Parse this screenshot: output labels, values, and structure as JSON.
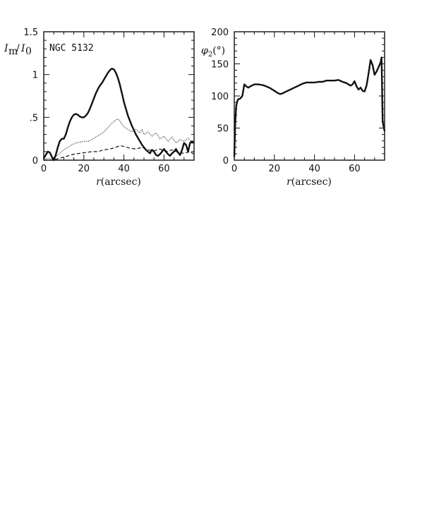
{
  "chart_data": [
    {
      "type": "line",
      "annotation": "NGC 5132",
      "xlabel": "r(arcsec)",
      "ylabel": "I_m/I_0",
      "xlim": [
        0,
        75
      ],
      "ylim": [
        0,
        1.5
      ],
      "x_ticks": [
        0,
        20,
        40,
        60
      ],
      "x_tick_labels": [
        "0",
        "20",
        "40",
        "60"
      ],
      "y_ticks": [
        0,
        0.5,
        1,
        1.5
      ],
      "y_tick_labels": [
        "0",
        ".5",
        "1",
        "1.5"
      ],
      "series": [
        {
          "style": "solid-thick",
          "x": [
            0,
            1,
            2,
            3,
            4,
            5,
            6,
            7,
            8,
            9,
            10,
            11,
            12,
            13,
            14,
            15,
            16,
            17,
            18,
            19,
            20,
            21,
            22,
            23,
            24,
            25,
            26,
            27,
            28,
            29,
            30,
            31,
            32,
            33,
            34,
            35,
            36,
            37,
            38,
            39,
            40,
            41,
            42,
            43,
            44,
            45,
            46,
            47,
            48,
            49,
            50,
            51,
            52,
            53,
            54,
            55,
            56,
            57,
            58,
            59,
            60,
            61,
            62,
            63,
            64,
            65,
            66,
            67,
            68,
            69,
            70,
            71,
            72,
            73,
            74,
            75
          ],
          "values": [
            0.02,
            0.06,
            0.1,
            0.09,
            0.04,
            0.0,
            0.06,
            0.15,
            0.22,
            0.25,
            0.25,
            0.3,
            0.38,
            0.45,
            0.5,
            0.53,
            0.54,
            0.53,
            0.51,
            0.5,
            0.5,
            0.52,
            0.55,
            0.6,
            0.66,
            0.72,
            0.78,
            0.83,
            0.87,
            0.9,
            0.94,
            0.98,
            1.02,
            1.05,
            1.07,
            1.06,
            1.02,
            0.96,
            0.88,
            0.78,
            0.68,
            0.6,
            0.52,
            0.46,
            0.4,
            0.35,
            0.3,
            0.26,
            0.22,
            0.18,
            0.15,
            0.12,
            0.1,
            0.08,
            0.12,
            0.1,
            0.06,
            0.05,
            0.07,
            0.1,
            0.13,
            0.1,
            0.07,
            0.05,
            0.08,
            0.1,
            0.13,
            0.09,
            0.06,
            0.12,
            0.2,
            0.18,
            0.1,
            0.2,
            0.22,
            0.2
          ]
        },
        {
          "style": "dotted",
          "x": [
            0,
            2,
            4,
            6,
            8,
            10,
            12,
            14,
            16,
            18,
            20,
            22,
            24,
            26,
            28,
            30,
            32,
            34,
            36,
            37,
            38,
            39,
            40,
            42,
            44,
            46,
            48,
            49,
            50,
            52,
            54,
            56,
            58,
            60,
            62,
            64,
            66,
            68,
            70,
            72,
            74
          ],
          "values": [
            0.01,
            0.02,
            0.02,
            0.04,
            0.08,
            0.12,
            0.15,
            0.18,
            0.2,
            0.21,
            0.22,
            0.22,
            0.24,
            0.27,
            0.3,
            0.33,
            0.38,
            0.43,
            0.47,
            0.48,
            0.46,
            0.42,
            0.39,
            0.36,
            0.33,
            0.36,
            0.32,
            0.36,
            0.3,
            0.33,
            0.28,
            0.32,
            0.25,
            0.28,
            0.22,
            0.27,
            0.2,
            0.24,
            0.22,
            0.26,
            0.2
          ]
        },
        {
          "style": "dashed",
          "x": [
            0,
            3,
            6,
            9,
            12,
            15,
            18,
            21,
            24,
            27,
            30,
            33,
            36,
            38,
            40,
            43,
            46,
            49,
            52,
            55,
            58,
            61,
            64,
            67,
            70,
            73,
            75
          ],
          "values": [
            0.0,
            0.0,
            0.01,
            0.03,
            0.05,
            0.07,
            0.08,
            0.09,
            0.1,
            0.1,
            0.12,
            0.13,
            0.15,
            0.17,
            0.16,
            0.14,
            0.13,
            0.15,
            0.12,
            0.11,
            0.13,
            0.1,
            0.12,
            0.09,
            0.08,
            0.1,
            0.07
          ]
        }
      ]
    },
    {
      "type": "line",
      "xlabel": "r(arcsec)",
      "ylabel": "φ2(°)",
      "xlim": [
        0,
        75
      ],
      "ylim": [
        0,
        200
      ],
      "x_ticks": [
        0,
        20,
        40,
        60
      ],
      "x_tick_labels": [
        "0",
        "20",
        "40",
        "60"
      ],
      "y_ticks": [
        0,
        50,
        100,
        150,
        200
      ],
      "y_tick_labels": [
        "0",
        "50",
        "100",
        "150",
        "200"
      ],
      "series": [
        {
          "style": "solid-thick",
          "x": [
            0,
            0.5,
            1,
            1.5,
            2,
            3,
            4,
            5,
            6,
            7,
            8,
            10,
            12,
            14,
            16,
            18,
            20,
            22,
            23,
            24,
            26,
            28,
            30,
            32,
            34,
            36,
            38,
            40,
            42,
            44,
            46,
            48,
            50,
            52,
            54,
            56,
            58,
            59,
            60,
            61,
            62,
            63,
            64,
            65,
            66,
            67,
            68,
            69,
            70,
            71,
            72,
            73,
            73.5,
            74,
            75
          ],
          "values": [
            5,
            60,
            85,
            92,
            95,
            96,
            100,
            118,
            115,
            113,
            115,
            118,
            118,
            117,
            115,
            112,
            108,
            104,
            103,
            104,
            107,
            110,
            113,
            116,
            119,
            121,
            121,
            121,
            122,
            122,
            124,
            124,
            124,
            125,
            122,
            120,
            116,
            118,
            123,
            115,
            110,
            113,
            108,
            107,
            116,
            135,
            156,
            148,
            133,
            138,
            145,
            152,
            160,
            60,
            45
          ]
        }
      ]
    }
  ]
}
